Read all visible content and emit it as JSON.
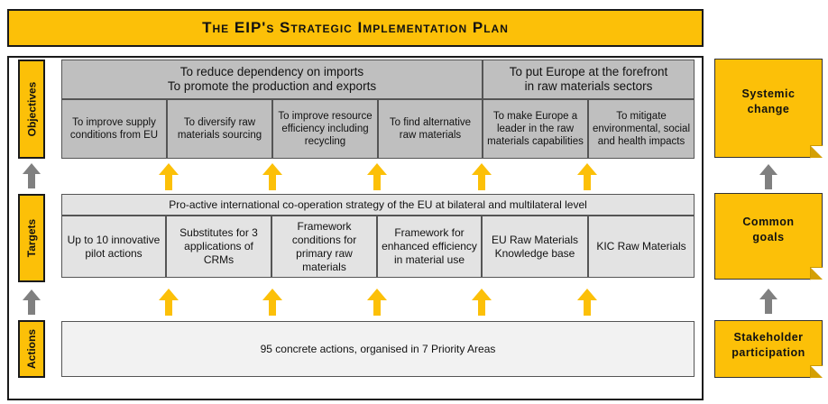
{
  "title": "The EIP's Strategic Implementation Plan",
  "side_labels": {
    "objectives": "Objectives",
    "targets": "Targets",
    "actions": "Actions"
  },
  "objectives": {
    "top_left_line1": "To reduce dependency on imports",
    "top_left_line2": "To promote the production and exports",
    "top_right_line1": "To put Europe at the forefront",
    "top_right_line2": "in raw materials sectors",
    "items": [
      "To improve supply conditions from EU",
      "To diversify raw materials sourcing",
      "To improve resource efficiency including recycling",
      "To find alternative raw materials",
      "To make Europe a leader in the raw materials capabilities",
      "To mitigate environmental, social and health impacts"
    ]
  },
  "targets": {
    "header": "Pro-active international co-operation strategy of the EU at bilateral and multilateral level",
    "items": [
      "Up to 10 innovative pilot actions",
      "Substitutes for 3 applications of CRMs",
      "Framework conditions for primary raw materials",
      "Framework for enhanced efficiency in material use",
      "EU Raw Materials Knowledge base",
      "KIC Raw Materials"
    ]
  },
  "actions": {
    "text": "95 concrete actions, organised in 7 Priority Areas"
  },
  "right_notes": {
    "systemic": "Systemic change",
    "common": "Common goals",
    "stakeholder": "Stakeholder participation"
  },
  "colors": {
    "accent": "#fcc008",
    "arrow_yellow": "#fcc008",
    "arrow_grey": "#808080",
    "objectives_bg": "#bfbfbf",
    "targets_bg": "#e3e3e3"
  }
}
